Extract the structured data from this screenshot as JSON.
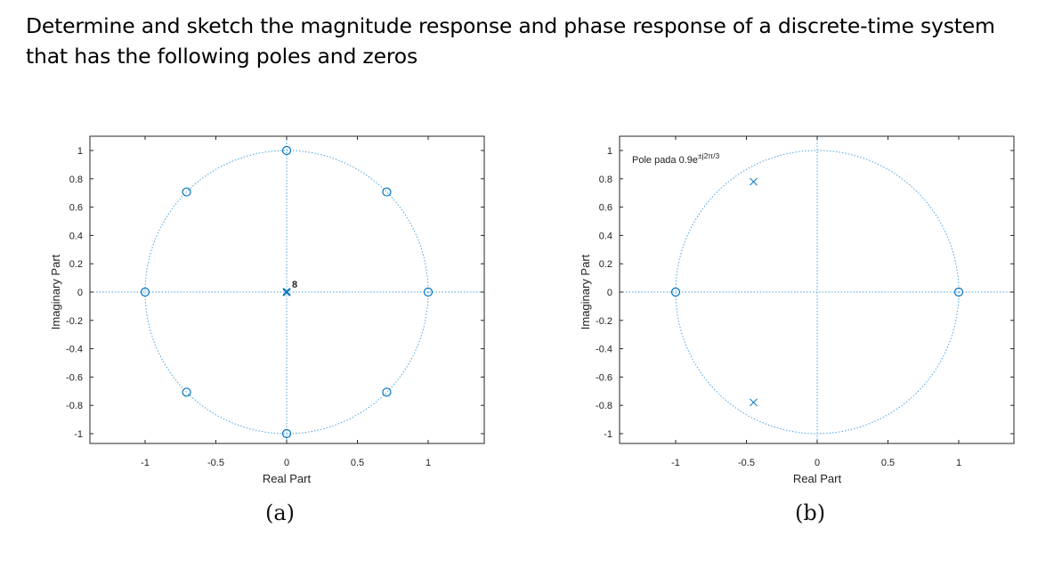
{
  "question": {
    "line1": "Determine and sketch the magnitude response and phase response of a discrete-time system",
    "line2": "that has the following poles and zeros"
  },
  "colors": {
    "marker": "#0072BD",
    "unit_circle": "#4DA3E0",
    "axes": "#262626",
    "text": "#222222"
  },
  "chart_data": [
    {
      "type": "scatter",
      "title": "",
      "caption": "(a)",
      "xlabel": "Real Part",
      "ylabel": "Imaginary Part",
      "xlim": [
        -1.4,
        1.4
      ],
      "ylim": [
        -1.1,
        1.1
      ],
      "xticks": [
        -1,
        -0.5,
        0,
        0.5,
        1
      ],
      "yticks": [
        1,
        0.8,
        0.6,
        0.4,
        0.2,
        0,
        -0.2,
        -0.4,
        -0.6,
        -0.8,
        -1
      ],
      "unit_circle": true,
      "grid": false,
      "zeros": [
        {
          "re": 1,
          "im": 0
        },
        {
          "re": 0.7071,
          "im": 0.7071
        },
        {
          "re": 0,
          "im": 1
        },
        {
          "re": -0.7071,
          "im": 0.7071
        },
        {
          "re": -1,
          "im": 0
        },
        {
          "re": -0.7071,
          "im": -0.7071
        },
        {
          "re": 0,
          "im": -1
        },
        {
          "re": 0.7071,
          "im": -0.7071
        }
      ],
      "poles": [
        {
          "re": 0,
          "im": 0,
          "multiplicity": 8
        }
      ],
      "annotations": [
        {
          "text": "8",
          "at": {
            "re": 0,
            "im": 0
          }
        }
      ]
    },
    {
      "type": "scatter",
      "title": "",
      "caption": "(b)",
      "xlabel": "Real Part",
      "ylabel": "Imaginary Part",
      "xlim": [
        -1.4,
        1.4
      ],
      "ylim": [
        -1.1,
        1.1
      ],
      "xticks": [
        -1,
        -0.5,
        0,
        0.5,
        1
      ],
      "yticks": [
        1,
        0.8,
        0.6,
        0.4,
        0.2,
        0,
        -0.2,
        -0.4,
        -0.6,
        -0.8,
        -1
      ],
      "unit_circle": true,
      "grid": false,
      "zeros": [
        {
          "re": 1,
          "im": 0
        },
        {
          "re": -1,
          "im": 0
        }
      ],
      "poles": [
        {
          "re": -0.45,
          "im": 0.7794
        },
        {
          "re": -0.45,
          "im": -0.7794
        }
      ],
      "annotations": [
        {
          "text": "Pole pada 0.9e",
          "superscript": "±j2π/3",
          "position": "top-left"
        }
      ]
    }
  ]
}
